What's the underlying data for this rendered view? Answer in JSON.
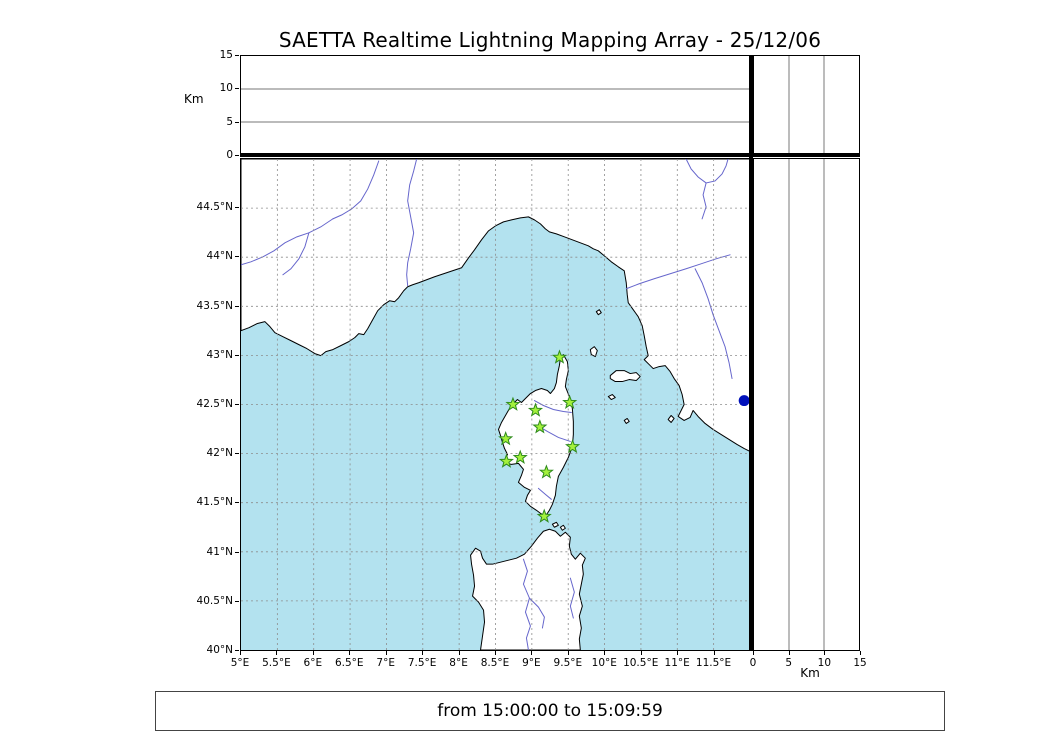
{
  "title": "SAETTA Realtime Lightning Mapping Array - 25/12/06",
  "status_text": "from 15:00:00 to 15:09:59",
  "altitude_top_axis": {
    "label": "Km",
    "range": [
      0,
      15
    ],
    "tick_values": [
      0,
      5,
      10,
      15
    ],
    "tick_labels": [
      "0",
      "5",
      "10",
      "15"
    ],
    "gridline_values": [
      5,
      10
    ]
  },
  "altitude_right_axis": {
    "label": "Km",
    "range": [
      0,
      15
    ],
    "tick_values": [
      0,
      5,
      10,
      15
    ],
    "tick_labels": [
      "0",
      "5",
      "10",
      "15"
    ],
    "gridline_values": [
      5,
      10
    ]
  },
  "map": {
    "lon_range": [
      5,
      12
    ],
    "lat_range": [
      40,
      45
    ],
    "lon_tick_values": [
      5,
      5.5,
      6,
      6.5,
      7,
      7.5,
      8,
      8.5,
      9,
      9.5,
      10,
      10.5,
      11,
      11.5
    ],
    "lon_tick_labels": [
      "5°E",
      "5.5°E",
      "6°E",
      "6.5°E",
      "7°E",
      "7.5°E",
      "8°E",
      "8.5°E",
      "9°E",
      "9.5°E",
      "10°E",
      "10.5°E",
      "11°E",
      "11.5°E"
    ],
    "lat_tick_values": [
      40,
      40.5,
      41,
      41.5,
      42,
      42.5,
      43,
      43.5,
      44,
      44.5
    ],
    "lat_tick_labels": [
      "40°N",
      "40.5°N",
      "41°N",
      "41.5°N",
      "42°N",
      "42.5°N",
      "43°N",
      "43.5°N",
      "44°N",
      "44.5°N"
    ],
    "colors": {
      "sea": "#b3e2ef",
      "land": "#ffffff",
      "coast": "#000000",
      "river": "#6666cc",
      "grid": "#8c8c8c",
      "panel_grid": "#777777",
      "station_fill": "#a4f13c",
      "station_edge": "#2e8a1c",
      "event_dot": "#0011bb"
    },
    "stations": [
      {
        "lon": 9.38,
        "lat": 42.98
      },
      {
        "lon": 9.52,
        "lat": 42.52
      },
      {
        "lon": 8.74,
        "lat": 42.5
      },
      {
        "lon": 9.05,
        "lat": 42.44
      },
      {
        "lon": 9.11,
        "lat": 42.27
      },
      {
        "lon": 8.64,
        "lat": 42.15
      },
      {
        "lon": 9.56,
        "lat": 42.07
      },
      {
        "lon": 8.84,
        "lat": 41.96
      },
      {
        "lon": 8.65,
        "lat": 41.92
      },
      {
        "lon": 9.2,
        "lat": 41.81
      },
      {
        "lon": 9.17,
        "lat": 41.36
      }
    ],
    "event_dot": {
      "lon": 11.92,
      "lat": 42.54
    }
  },
  "chart_data": {
    "type": "scatter",
    "title": "SAETTA Realtime Lightning Mapping Array - 25/12/06",
    "time_window": "from 15:00:00 to 15:09:59",
    "panels": [
      {
        "name": "altitude-vs-longitude",
        "x_range": [
          5,
          12
        ],
        "y_range": [
          0,
          15
        ],
        "ylabel": "Km",
        "y_ticks": [
          0,
          5,
          10,
          15
        ],
        "points": []
      },
      {
        "name": "map-latitude-vs-longitude",
        "x_range": [
          5,
          12
        ],
        "y_range": [
          40,
          45
        ],
        "grid": true,
        "series": [
          {
            "name": "lma-stations",
            "marker": "star",
            "color": "#a4f13c",
            "points": [
              [
                9.38,
                42.98
              ],
              [
                9.52,
                42.52
              ],
              [
                8.74,
                42.5
              ],
              [
                9.05,
                42.44
              ],
              [
                9.11,
                42.27
              ],
              [
                8.64,
                42.15
              ],
              [
                9.56,
                42.07
              ],
              [
                8.84,
                41.96
              ],
              [
                8.65,
                41.92
              ],
              [
                9.2,
                41.81
              ],
              [
                9.17,
                41.36
              ]
            ]
          },
          {
            "name": "event-source",
            "marker": "circle",
            "color": "#0011bb",
            "points": [
              [
                11.92,
                42.54
              ]
            ]
          }
        ]
      },
      {
        "name": "altitude-vs-latitude",
        "x_range": [
          0,
          15
        ],
        "y_range": [
          40,
          45
        ],
        "xlabel": "Km",
        "x_ticks": [
          0,
          5,
          10,
          15
        ],
        "points": []
      }
    ]
  }
}
